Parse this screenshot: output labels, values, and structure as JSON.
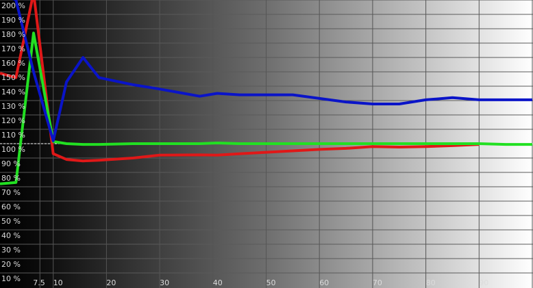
{
  "chart_data": {
    "type": "line",
    "title": "",
    "xlabel": "",
    "ylabel": "",
    "xlim": [
      0,
      100
    ],
    "ylim": [
      0,
      200
    ],
    "grid": true,
    "legend": "none",
    "reference_line": 100,
    "x_ticks": [
      7.5,
      10,
      20,
      30,
      40,
      50,
      60,
      70,
      80,
      90
    ],
    "x_tick_labels": [
      "7.5",
      "10",
      "20",
      "30",
      "40",
      "50",
      "60",
      "70",
      "80",
      "90"
    ],
    "y_ticks": [
      10,
      20,
      30,
      40,
      50,
      60,
      70,
      80,
      90,
      100,
      110,
      120,
      130,
      140,
      150,
      160,
      170,
      180,
      190,
      200
    ],
    "y_tick_labels": [
      "10 %",
      "20 %",
      "30 %",
      "40 %",
      "50 %",
      "60 %",
      "70 %",
      "80 %",
      "90 %",
      "100 %",
      "110 %",
      "120 %",
      "130 %",
      "140 %",
      "150 %",
      "160 %",
      "170 %",
      "180 %",
      "190 %",
      "200 %"
    ],
    "x": [
      0,
      3,
      6.3,
      10,
      12.5,
      15.6,
      18.6,
      25,
      30,
      37.5,
      40.8,
      45,
      50,
      55,
      60,
      65,
      70,
      75,
      80,
      85,
      90,
      95,
      100
    ],
    "series": [
      {
        "color": "#e01818",
        "values": [
          149,
          146,
          205,
          93,
          89,
          88,
          88.5,
          90,
          92,
          92.2,
          92,
          93,
          94,
          95,
          96,
          96.7,
          98,
          97.6,
          98,
          98.6,
          99.5,
          null,
          null
        ]
      },
      {
        "color": "#22e022",
        "values": [
          72,
          73,
          177,
          101.5,
          100,
          99.5,
          99.5,
          100,
          100,
          100,
          100.5,
          100,
          100,
          100,
          100,
          100,
          100,
          100,
          100,
          100,
          100,
          99.5,
          99.5
        ]
      },
      {
        "color": "#0a14c8",
        "values": [
          205,
          200,
          150,
          102,
          143,
          160,
          146,
          141,
          138,
          133,
          135,
          134,
          134,
          134,
          131.5,
          129,
          127.6,
          127.6,
          130.5,
          132,
          130.5,
          130.5,
          130.5
        ]
      }
    ],
    "background": "horizontal gradient black to white"
  }
}
